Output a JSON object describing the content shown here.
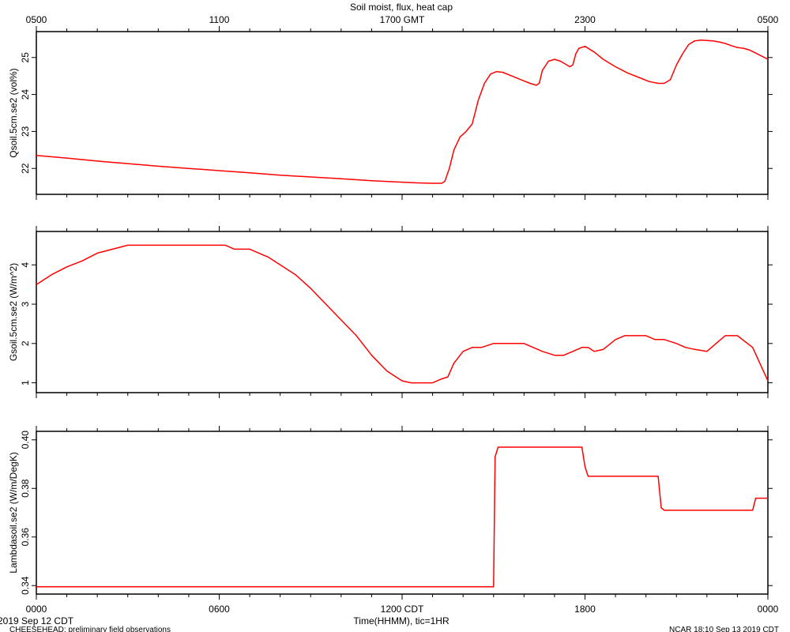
{
  "title": "Soil moist, flux, heat cap",
  "top_axis": {
    "unit": "GMT",
    "tick_labels": [
      "0500",
      "1100",
      "1700 GMT",
      "2300",
      "0500"
    ]
  },
  "bottom_axis": {
    "label": "Time(HHMM), tic=1HR",
    "tick_labels": [
      "0000",
      "0600",
      "1200 CDT",
      "1800",
      "0000"
    ],
    "start_date": "2019 Sep 12 CDT"
  },
  "footer": {
    "left": "CHEESEHEAD: preliminary field observations",
    "right": "NCAR 18:10 Sep 13 2019 CDT"
  },
  "colors": {
    "series": "#ff0000",
    "axes": "#000000"
  },
  "chart_data": [
    {
      "type": "line",
      "ylabel": "Qsoil.5cm.se2 (vol%)",
      "ylim": [
        21.3,
        25.7
      ],
      "yticks": [
        22,
        23,
        24,
        25
      ],
      "xlim": [
        0,
        24
      ],
      "x_unit": "hours since 0000 CDT Sep 12",
      "series": [
        {
          "x": [
            0,
            1,
            2,
            3,
            4,
            5,
            6,
            7,
            8,
            9,
            10,
            11,
            12,
            12.5,
            13,
            13.3,
            13.4,
            13.55,
            13.7,
            13.9,
            14.1,
            14.3,
            14.5,
            14.7,
            14.9,
            15.1,
            15.3,
            15.6,
            15.9,
            16.2,
            16.4,
            16.5,
            16.6,
            16.8,
            17,
            17.2,
            17.4,
            17.5,
            17.6,
            17.7,
            17.8,
            18,
            18.3,
            18.6,
            19,
            19.4,
            19.8,
            20.1,
            20.4,
            20.6,
            20.8,
            21,
            21.2,
            21.4,
            21.6,
            21.8,
            22,
            22.2,
            22.4,
            22.6,
            22.8,
            23,
            23.2,
            23.4,
            23.6,
            24
          ],
          "y": [
            22.35,
            22.28,
            22.2,
            22.13,
            22.06,
            22.0,
            21.94,
            21.88,
            21.82,
            21.77,
            21.72,
            21.67,
            21.63,
            21.61,
            21.6,
            21.6,
            21.65,
            22.0,
            22.5,
            22.85,
            23.0,
            23.2,
            23.85,
            24.3,
            24.55,
            24.62,
            24.6,
            24.5,
            24.4,
            24.3,
            24.25,
            24.3,
            24.65,
            24.9,
            24.95,
            24.9,
            24.8,
            24.75,
            24.8,
            25.1,
            25.25,
            25.3,
            25.15,
            24.95,
            24.75,
            24.58,
            24.45,
            24.35,
            24.3,
            24.3,
            24.4,
            24.8,
            25.1,
            25.35,
            25.45,
            25.47,
            25.46,
            25.45,
            25.42,
            25.38,
            25.32,
            25.27,
            25.25,
            25.2,
            25.12,
            24.95
          ]
        }
      ]
    },
    {
      "type": "line",
      "ylabel": "Gsoil.5cm.se2 (W/m^2)",
      "ylim": [
        0.75,
        4.85
      ],
      "yticks": [
        1,
        2,
        3,
        4
      ],
      "xlim": [
        0,
        24
      ],
      "x_unit": "hours since 0000 CDT Sep 12",
      "series": [
        {
          "x": [
            0,
            0.5,
            1,
            1.5,
            2,
            2.5,
            3,
            4,
            5,
            6,
            6.2,
            6.5,
            7,
            7.3,
            7.6,
            8,
            8.5,
            9,
            9.5,
            10,
            10.5,
            11,
            11.5,
            12,
            12.3,
            12.8,
            13,
            13.3,
            13.5,
            13.7,
            14,
            14.3,
            14.6,
            15,
            15.5,
            16,
            16.3,
            16.6,
            17,
            17.3,
            17.6,
            17.9,
            18.1,
            18.3,
            18.6,
            19,
            19.3,
            19.6,
            20,
            20.3,
            20.6,
            21,
            21.3,
            21.6,
            22,
            22.3,
            22.6,
            23,
            23.5,
            24
          ],
          "y": [
            3.5,
            3.75,
            3.95,
            4.1,
            4.3,
            4.4,
            4.5,
            4.5,
            4.5,
            4.5,
            4.5,
            4.4,
            4.4,
            4.3,
            4.2,
            4.0,
            3.75,
            3.4,
            3.0,
            2.6,
            2.2,
            1.7,
            1.3,
            1.05,
            1.0,
            1.0,
            1.0,
            1.1,
            1.15,
            1.5,
            1.8,
            1.9,
            1.9,
            2.0,
            2.0,
            2.0,
            1.9,
            1.8,
            1.7,
            1.7,
            1.8,
            1.9,
            1.9,
            1.8,
            1.85,
            2.1,
            2.2,
            2.2,
            2.2,
            2.1,
            2.1,
            2.0,
            1.9,
            1.85,
            1.8,
            2.0,
            2.2,
            2.2,
            1.9,
            1.05
          ]
        }
      ]
    },
    {
      "type": "line",
      "ylabel": "Lambdasoil.se2 (W/m/DegK)",
      "ylim": [
        0.3365,
        0.4035
      ],
      "yticks": [
        0.34,
        0.36,
        0.38,
        0.4
      ],
      "ytick_labels": [
        "0.34",
        "0.36",
        "0.38",
        "0.40"
      ],
      "xlim": [
        0,
        24
      ],
      "x_unit": "hours since 0000 CDT Sep 12",
      "series": [
        {
          "x": [
            0,
            14.9,
            15.0,
            15.05,
            15.15,
            17.9,
            18.0,
            18.1,
            20.4,
            20.5,
            20.6,
            23.5,
            23.6,
            24
          ],
          "y": [
            0.3395,
            0.3395,
            0.3395,
            0.393,
            0.397,
            0.397,
            0.389,
            0.385,
            0.385,
            0.372,
            0.371,
            0.371,
            0.376,
            0.376
          ]
        }
      ]
    }
  ]
}
